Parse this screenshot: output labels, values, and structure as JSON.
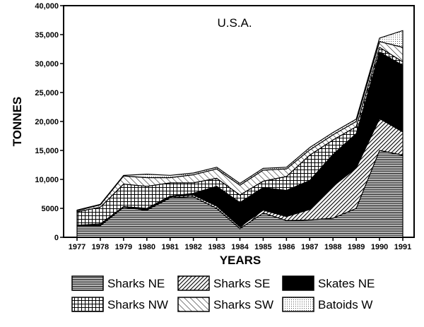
{
  "chart_data": {
    "type": "area",
    "stacked": true,
    "title": "U.S.A.",
    "xlabel": "YEARS",
    "ylabel": "TONNES",
    "ylim": [
      0,
      40000
    ],
    "yticks": [
      0,
      5000,
      10000,
      15000,
      20000,
      25000,
      30000,
      35000,
      40000
    ],
    "ytick_labels": [
      "0",
      "5000",
      "10,000",
      "15,000",
      "20,000",
      "25,000",
      "30,000",
      "35,000",
      "40,000"
    ],
    "categories": [
      "1977",
      "1978",
      "1979",
      "1980",
      "1981",
      "1982",
      "1983",
      "1984",
      "1985",
      "1986",
      "1987",
      "1988",
      "1989",
      "1990",
      "1991"
    ],
    "grid": false,
    "legend_position": "bottom",
    "series": [
      {
        "name": "Sharks NE",
        "pattern": "horizontal-lines",
        "values": [
          2000,
          2000,
          5200,
          4700,
          6800,
          7000,
          5000,
          1500,
          4200,
          2900,
          3000,
          3300,
          5000,
          15000,
          14200
        ]
      },
      {
        "name": "Sharks SE",
        "pattern": "diagonal-dense",
        "values": [
          100,
          200,
          0,
          0,
          200,
          300,
          400,
          300,
          500,
          700,
          1800,
          5500,
          7000,
          5500,
          4000
        ]
      },
      {
        "name": "Skates NE",
        "pattern": "solid-black",
        "values": [
          0,
          100,
          100,
          300,
          100,
          300,
          3400,
          4200,
          3900,
          4500,
          5000,
          5500,
          5900,
          11500,
          11500
        ]
      },
      {
        "name": "Sharks NW",
        "pattern": "grid",
        "values": [
          2300,
          2900,
          3900,
          3800,
          2300,
          1800,
          1400,
          1300,
          1100,
          2400,
          4400,
          2500,
          1200,
          800,
          600
        ]
      },
      {
        "name": "Sharks SW",
        "pattern": "diagonal-sparse",
        "values": [
          200,
          400,
          1400,
          1500,
          900,
          1400,
          1600,
          1700,
          1900,
          1300,
          900,
          900,
          900,
          1000,
          2500
        ]
      },
      {
        "name": "Batoids W",
        "pattern": "dots",
        "values": [
          100,
          100,
          100,
          600,
          400,
          300,
          300,
          300,
          300,
          300,
          400,
          400,
          400,
          600,
          2900
        ]
      }
    ]
  }
}
